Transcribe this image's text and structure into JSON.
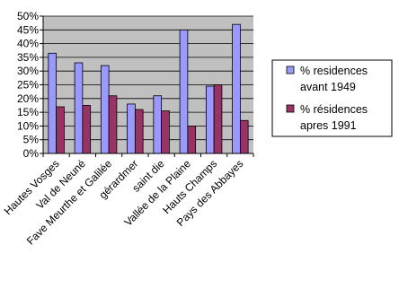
{
  "chart_data": {
    "type": "bar",
    "categories": [
      "Hautes Vosges",
      "Val de Neuné",
      "Fave Meurthe et Galilée",
      "gérardmer",
      "saint die",
      "Vallée de la Plaine",
      "Hauts Champs",
      "Pays des Abbayes"
    ],
    "series": [
      {
        "name": [
          "% residences",
          "avant 1949"
        ],
        "color": "#9999ff",
        "values": [
          36.5,
          33,
          32,
          18,
          21,
          45,
          24.5,
          47
        ]
      },
      {
        "name": [
          "% résidences",
          "apres 1991"
        ],
        "color": "#993366",
        "values": [
          17,
          17.5,
          21,
          16,
          15.5,
          10,
          25,
          12
        ]
      }
    ],
    "yticks": [
      "0%",
      "5%",
      "10%",
      "15%",
      "20%",
      "25%",
      "30%",
      "35%",
      "40%",
      "45%",
      "50%"
    ],
    "ylim": [
      0,
      50
    ],
    "grid": true,
    "plot_background": "#c0c0c0",
    "legend_position": "right"
  }
}
